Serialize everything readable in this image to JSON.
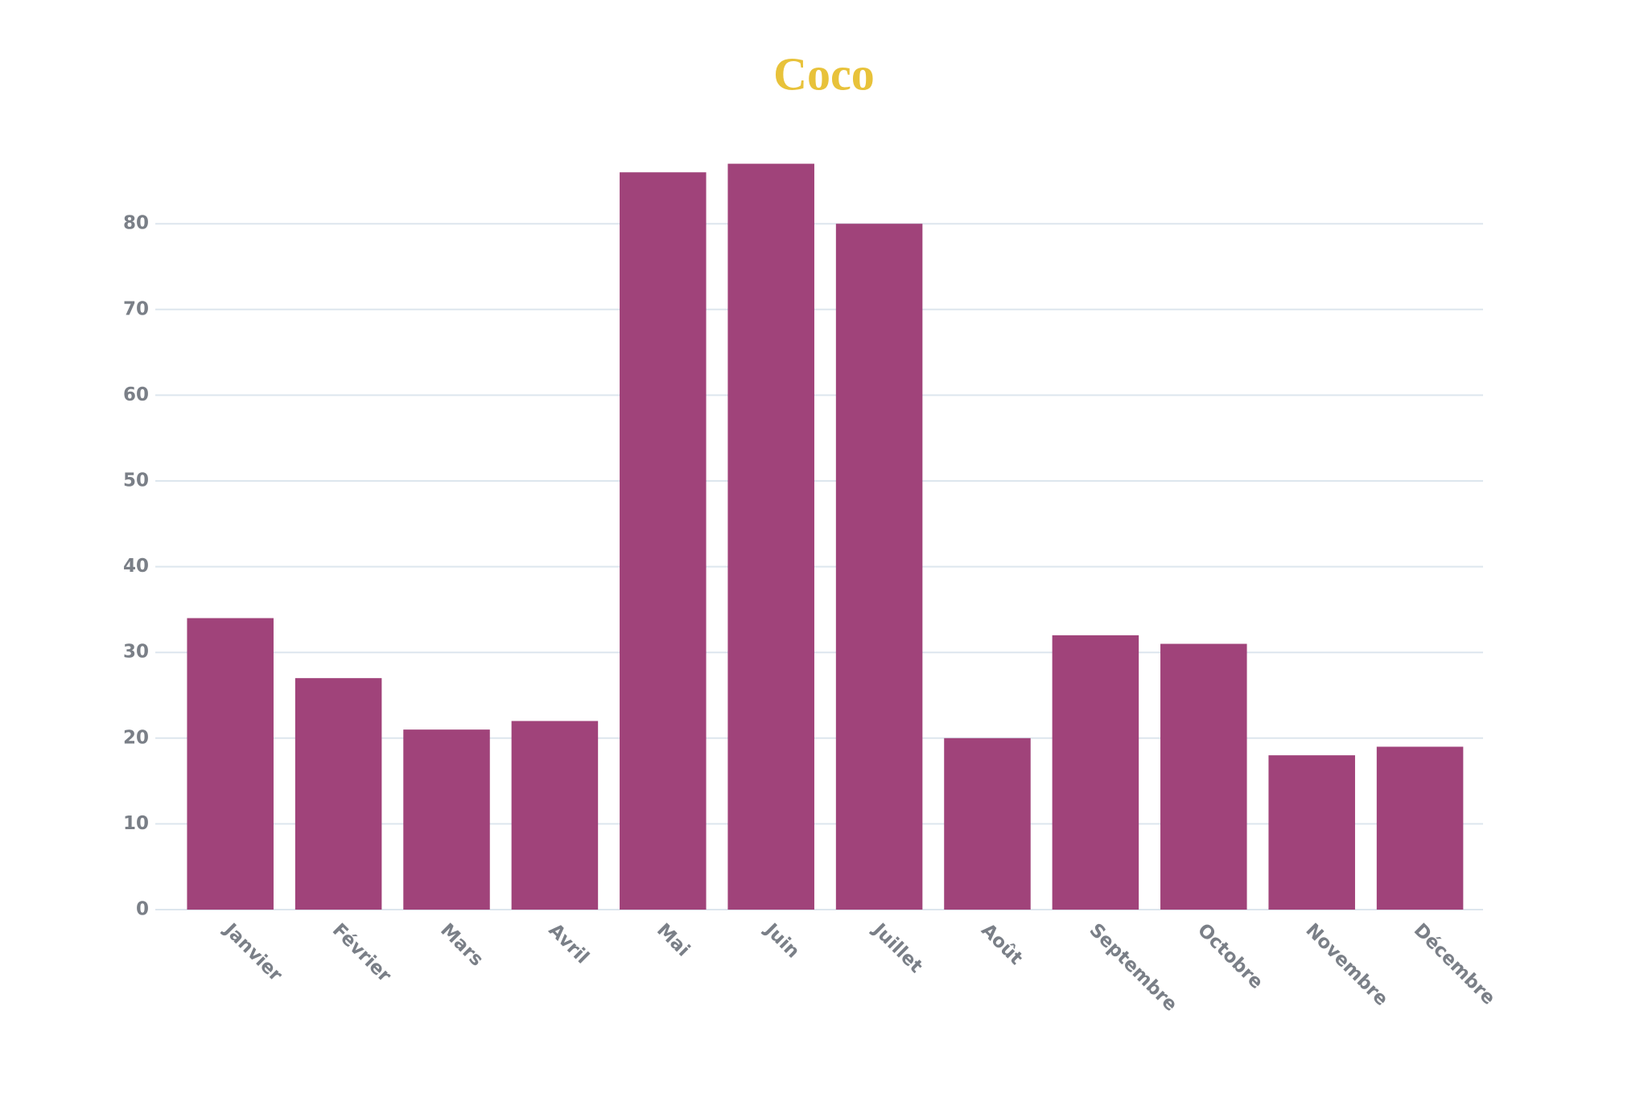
{
  "chart_data": {
    "type": "bar",
    "title": "Coco",
    "categories": [
      "Janvier",
      "Février",
      "Mars",
      "Avril",
      "Mai",
      "Juin",
      "Juillet",
      "Août",
      "Septembre",
      "Octobre",
      "Novembre",
      "Décembre"
    ],
    "values": [
      34,
      27,
      21,
      22,
      86,
      87,
      80,
      20,
      32,
      31,
      18,
      19
    ],
    "color": "#a0437a",
    "ylim": [
      0,
      90
    ],
    "yticks": [
      0,
      10,
      20,
      30,
      40,
      50,
      60,
      70,
      80
    ],
    "grid": true
  }
}
